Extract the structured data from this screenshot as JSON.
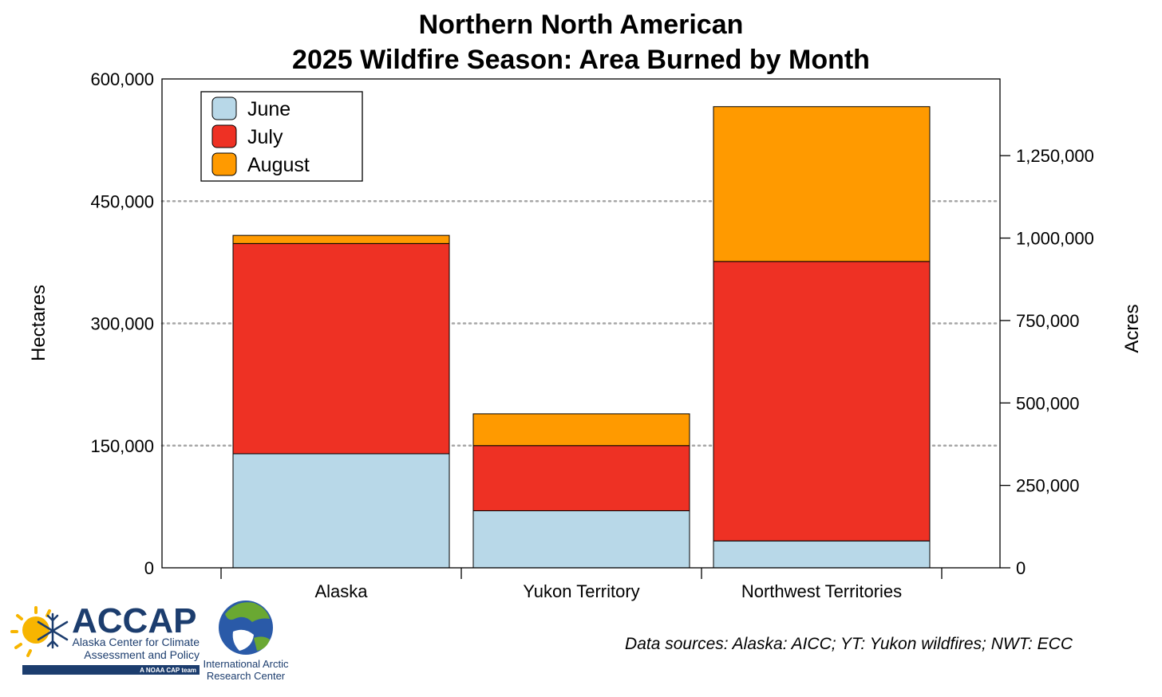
{
  "chart_data": {
    "type": "bar",
    "stacked": true,
    "title_line1": "Northern North American",
    "title_line2": "2025 Wildfire Season: Area Burned by Month",
    "categories": [
      "Alaska",
      "Yukon Territory",
      "Northwest Territories"
    ],
    "series": [
      {
        "name": "June",
        "color": "#b8d8e8",
        "values": [
          140000,
          70000,
          33000
        ]
      },
      {
        "name": "July",
        "color": "#ee3124",
        "values": [
          258000,
          80000,
          343000
        ]
      },
      {
        "name": "August",
        "color": "#ff9a00",
        "values": [
          10000,
          39000,
          190000
        ]
      }
    ],
    "ylabel": "Hectares",
    "ylabel_right": "Acres",
    "ylim": [
      0,
      600000
    ],
    "yticks": [
      0,
      150000,
      300000,
      450000,
      600000
    ],
    "ytick_labels": [
      "0",
      "150,000",
      "300,000",
      "450,000",
      "600,000"
    ],
    "right_ticks_acres": [
      0,
      250000,
      500000,
      750000,
      1000000,
      1250000
    ],
    "right_tick_labels": [
      "0",
      "250,000",
      "500,000",
      "750,000",
      "1,000,000",
      "1,250,000"
    ],
    "acres_per_hectare": 2.47105,
    "grid_dotted_at": [
      150000,
      300000,
      450000
    ],
    "legend_position": "top-left"
  },
  "footer": {
    "source": "Data sources: Alaska: AICC; YT: Yukon wildfires; NWT: ECC"
  },
  "logos": {
    "accap_name": "ACCAP",
    "accap_line1": "Alaska Center for Climate",
    "accap_line2": "Assessment and Policy",
    "accap_tag": "A NOAA CAP team",
    "iarc_line1": "International Arctic",
    "iarc_line2": "Research Center"
  }
}
